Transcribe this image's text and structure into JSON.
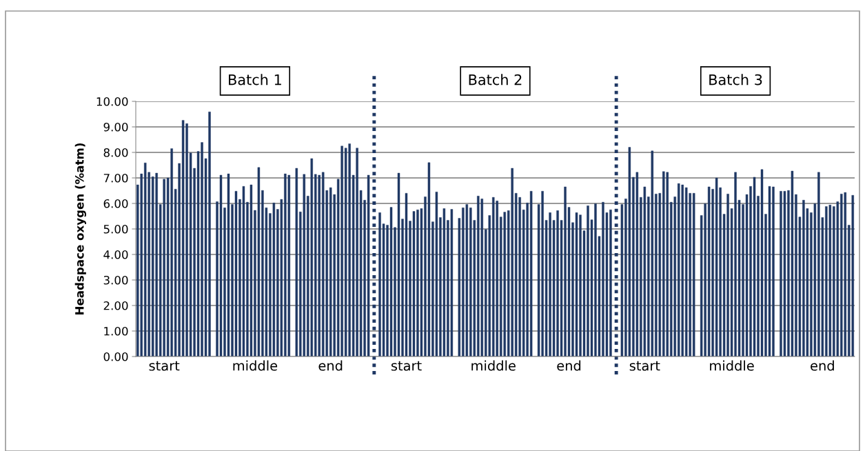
{
  "chart_data": {
    "type": "bar",
    "ylabel": "Headspace oxygen (%atm)",
    "categories": [
      null,
      null,
      null,
      null,
      null,
      null,
      null,
      "start",
      null,
      null,
      null,
      null,
      null,
      null,
      null,
      null,
      null,
      null,
      null,
      null,
      null,
      null,
      null,
      null,
      null,
      null,
      null,
      null,
      null,
      null,
      null,
      "middle",
      null,
      null,
      null,
      null,
      null,
      null,
      null,
      null,
      null,
      null,
      null,
      null,
      null,
      null,
      null,
      null,
      null,
      null,
      null,
      "end",
      null,
      null,
      null,
      null,
      null,
      null,
      null,
      null,
      null,
      null,
      null,
      null,
      null,
      null,
      null,
      null,
      null,
      null,
      null,
      "start",
      null,
      null,
      null,
      null,
      null,
      null,
      null,
      null,
      null,
      null,
      null,
      null,
      null,
      null,
      null,
      null,
      null,
      null,
      null,
      null,
      null,
      null,
      "middle",
      null,
      null,
      null,
      null,
      null,
      null,
      null,
      null,
      null,
      null,
      null,
      null,
      null,
      null,
      null,
      null,
      null,
      null,
      null,
      "end",
      null,
      null,
      null,
      null,
      null,
      null,
      null,
      null,
      null,
      null,
      null,
      null,
      null,
      null,
      null,
      null,
      null,
      null,
      null,
      "start",
      null,
      null,
      null,
      null,
      null,
      null,
      null,
      null,
      null,
      null,
      null,
      null,
      null,
      null,
      null,
      null,
      null,
      null,
      null,
      null,
      null,
      null,
      "middle",
      null,
      null,
      null,
      null,
      null,
      null,
      null,
      null,
      null,
      null,
      null,
      null,
      null,
      null,
      null,
      null,
      null,
      null,
      null,
      null,
      null,
      null,
      null,
      "end",
      null,
      null,
      null,
      null,
      null,
      null,
      null,
      null
    ],
    "series": [
      {
        "color": "#1f3864",
        "values": [
          6.73,
          7.16,
          7.59,
          7.22,
          7.05,
          7.19,
          5.96,
          6.95,
          7.0,
          8.15,
          6.56,
          7.57,
          9.26,
          9.13,
          7.98,
          7.38,
          8.04,
          8.39,
          7.76,
          9.59,
          null,
          6.07,
          7.11,
          5.83,
          7.16,
          5.96,
          6.48,
          6.16,
          6.67,
          6.05,
          6.73,
          5.73,
          7.41,
          6.51,
          5.83,
          5.61,
          6.02,
          5.77,
          6.16,
          7.16,
          7.11,
          null,
          7.38,
          5.67,
          7.14,
          6.29,
          7.76,
          7.14,
          7.11,
          7.22,
          6.51,
          6.62,
          6.35,
          6.95,
          8.25,
          8.17,
          8.34,
          7.11,
          8.17,
          6.51,
          6.13,
          7.11,
          null,
          null,
          5.64,
          5.2,
          5.15,
          5.85,
          5.06,
          7.19,
          5.39,
          6.4,
          5.31,
          5.69,
          5.75,
          5.8,
          6.26,
          7.6,
          5.28,
          6.45,
          5.45,
          5.8,
          5.34,
          5.77,
          null,
          5.42,
          5.83,
          5.96,
          5.83,
          5.34,
          6.29,
          6.18,
          4.98,
          5.53,
          6.24,
          6.1,
          5.47,
          5.66,
          5.72,
          7.38,
          6.4,
          6.24,
          5.75,
          6.02,
          6.48,
          null,
          5.96,
          6.48,
          5.34,
          5.64,
          5.34,
          5.72,
          5.34,
          6.65,
          5.85,
          5.25,
          5.64,
          5.55,
          4.93,
          5.91,
          5.36,
          5.99,
          4.71,
          6.05,
          5.64,
          5.75,
          null,
          null,
          5.96,
          6.18,
          8.2,
          7.03,
          7.22,
          6.24,
          6.65,
          6.26,
          8.06,
          6.37,
          6.4,
          7.25,
          7.22,
          6.05,
          6.26,
          6.78,
          6.73,
          6.62,
          6.4,
          6.4,
          null,
          5.53,
          5.99,
          6.65,
          6.56,
          7.0,
          6.62,
          5.58,
          6.37,
          5.8,
          7.22,
          6.13,
          5.96,
          6.35,
          6.67,
          7.03,
          6.29,
          7.33,
          5.58,
          6.67,
          6.65,
          null,
          6.48,
          6.48,
          6.51,
          7.27,
          6.35,
          5.47,
          6.13,
          5.8,
          5.64,
          5.99,
          7.22,
          5.45,
          5.88,
          5.94,
          5.88,
          6.07,
          6.37,
          6.43,
          5.15,
          6.32
        ]
      }
    ],
    "ylim": [
      0,
      10
    ],
    "yticks": [
      {
        "value": 0,
        "label": "0.00"
      },
      {
        "value": 1,
        "label": "1.00"
      },
      {
        "value": 2,
        "label": "2.00"
      },
      {
        "value": 3,
        "label": "3.00"
      },
      {
        "value": 4,
        "label": "4.00"
      },
      {
        "value": 5,
        "label": "5.00"
      },
      {
        "value": 6,
        "label": "6.00"
      },
      {
        "value": 7,
        "label": "7.00"
      },
      {
        "value": 8,
        "label": "8.00"
      },
      {
        "value": 9,
        "label": "9.00"
      },
      {
        "value": 10,
        "label": "10.00"
      }
    ],
    "grid": "y",
    "annotations": [
      "Batch 1",
      "Batch 2",
      "Batch 3"
    ]
  }
}
